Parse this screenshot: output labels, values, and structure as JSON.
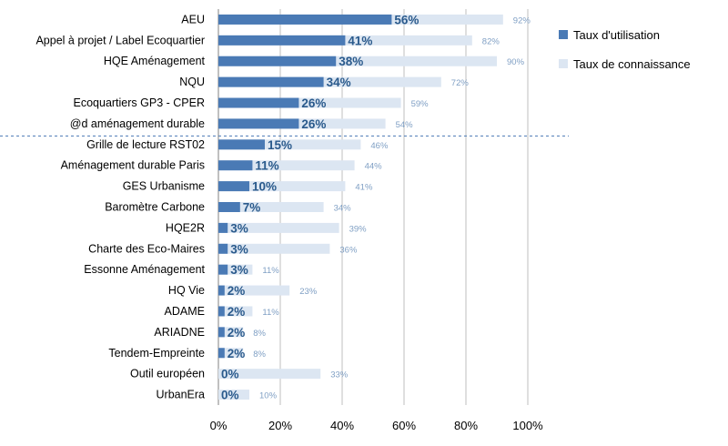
{
  "chart_data": {
    "type": "bar",
    "orientation": "horizontal",
    "categories": [
      "AEU",
      "Appel à projet / Label Ecoquartier",
      "HQE Aménagement",
      "NQU",
      "Ecoquartiers GP3 - CPER",
      "@d aménagement durable",
      "Grille de lecture RST02",
      "Aménagement durable Paris",
      "GES Urbanisme",
      "Baromètre Carbone",
      "HQE2R",
      "Charte des Eco-Maires",
      "Essonne Aménagement",
      "HQ Vie",
      "ADAME",
      "ARIADNE",
      "Tendem-Empreinte",
      "Outil européen",
      "UrbanEra"
    ],
    "series": [
      {
        "name": "Taux d'utilisation",
        "color": "#4a7ab5",
        "values": [
          56,
          41,
          38,
          34,
          26,
          26,
          15,
          11,
          10,
          7,
          3,
          3,
          3,
          2,
          2,
          2,
          2,
          0,
          0
        ],
        "labels": [
          "56%",
          "41%",
          "38%",
          "34%",
          "26%",
          "26%",
          "15%",
          "11%",
          "10%",
          "7%",
          "3%",
          "3%",
          "3%",
          "2%",
          "2%",
          "2%",
          "2%",
          "0%",
          "0%"
        ]
      },
      {
        "name": "Taux de connaissance",
        "color": "#dce6f2",
        "values": [
          92,
          82,
          90,
          72,
          59,
          54,
          46,
          44,
          41,
          34,
          39,
          36,
          11,
          23,
          11,
          8,
          8,
          33,
          10
        ],
        "labels": [
          "92%",
          "82%",
          "90%",
          "72%",
          "59%",
          "54%",
          "46%",
          "44%",
          "41%",
          "34%",
          "39%",
          "36%",
          "11%",
          "23%",
          "11%",
          "8%",
          "8%",
          "33%",
          "10%"
        ]
      }
    ],
    "xlim": [
      0,
      100
    ],
    "x_ticks": [
      "0%",
      "20%",
      "40%",
      "60%",
      "80%",
      "100%"
    ],
    "grid": true,
    "legend_position": "right",
    "separator_after_category_index": 5
  }
}
